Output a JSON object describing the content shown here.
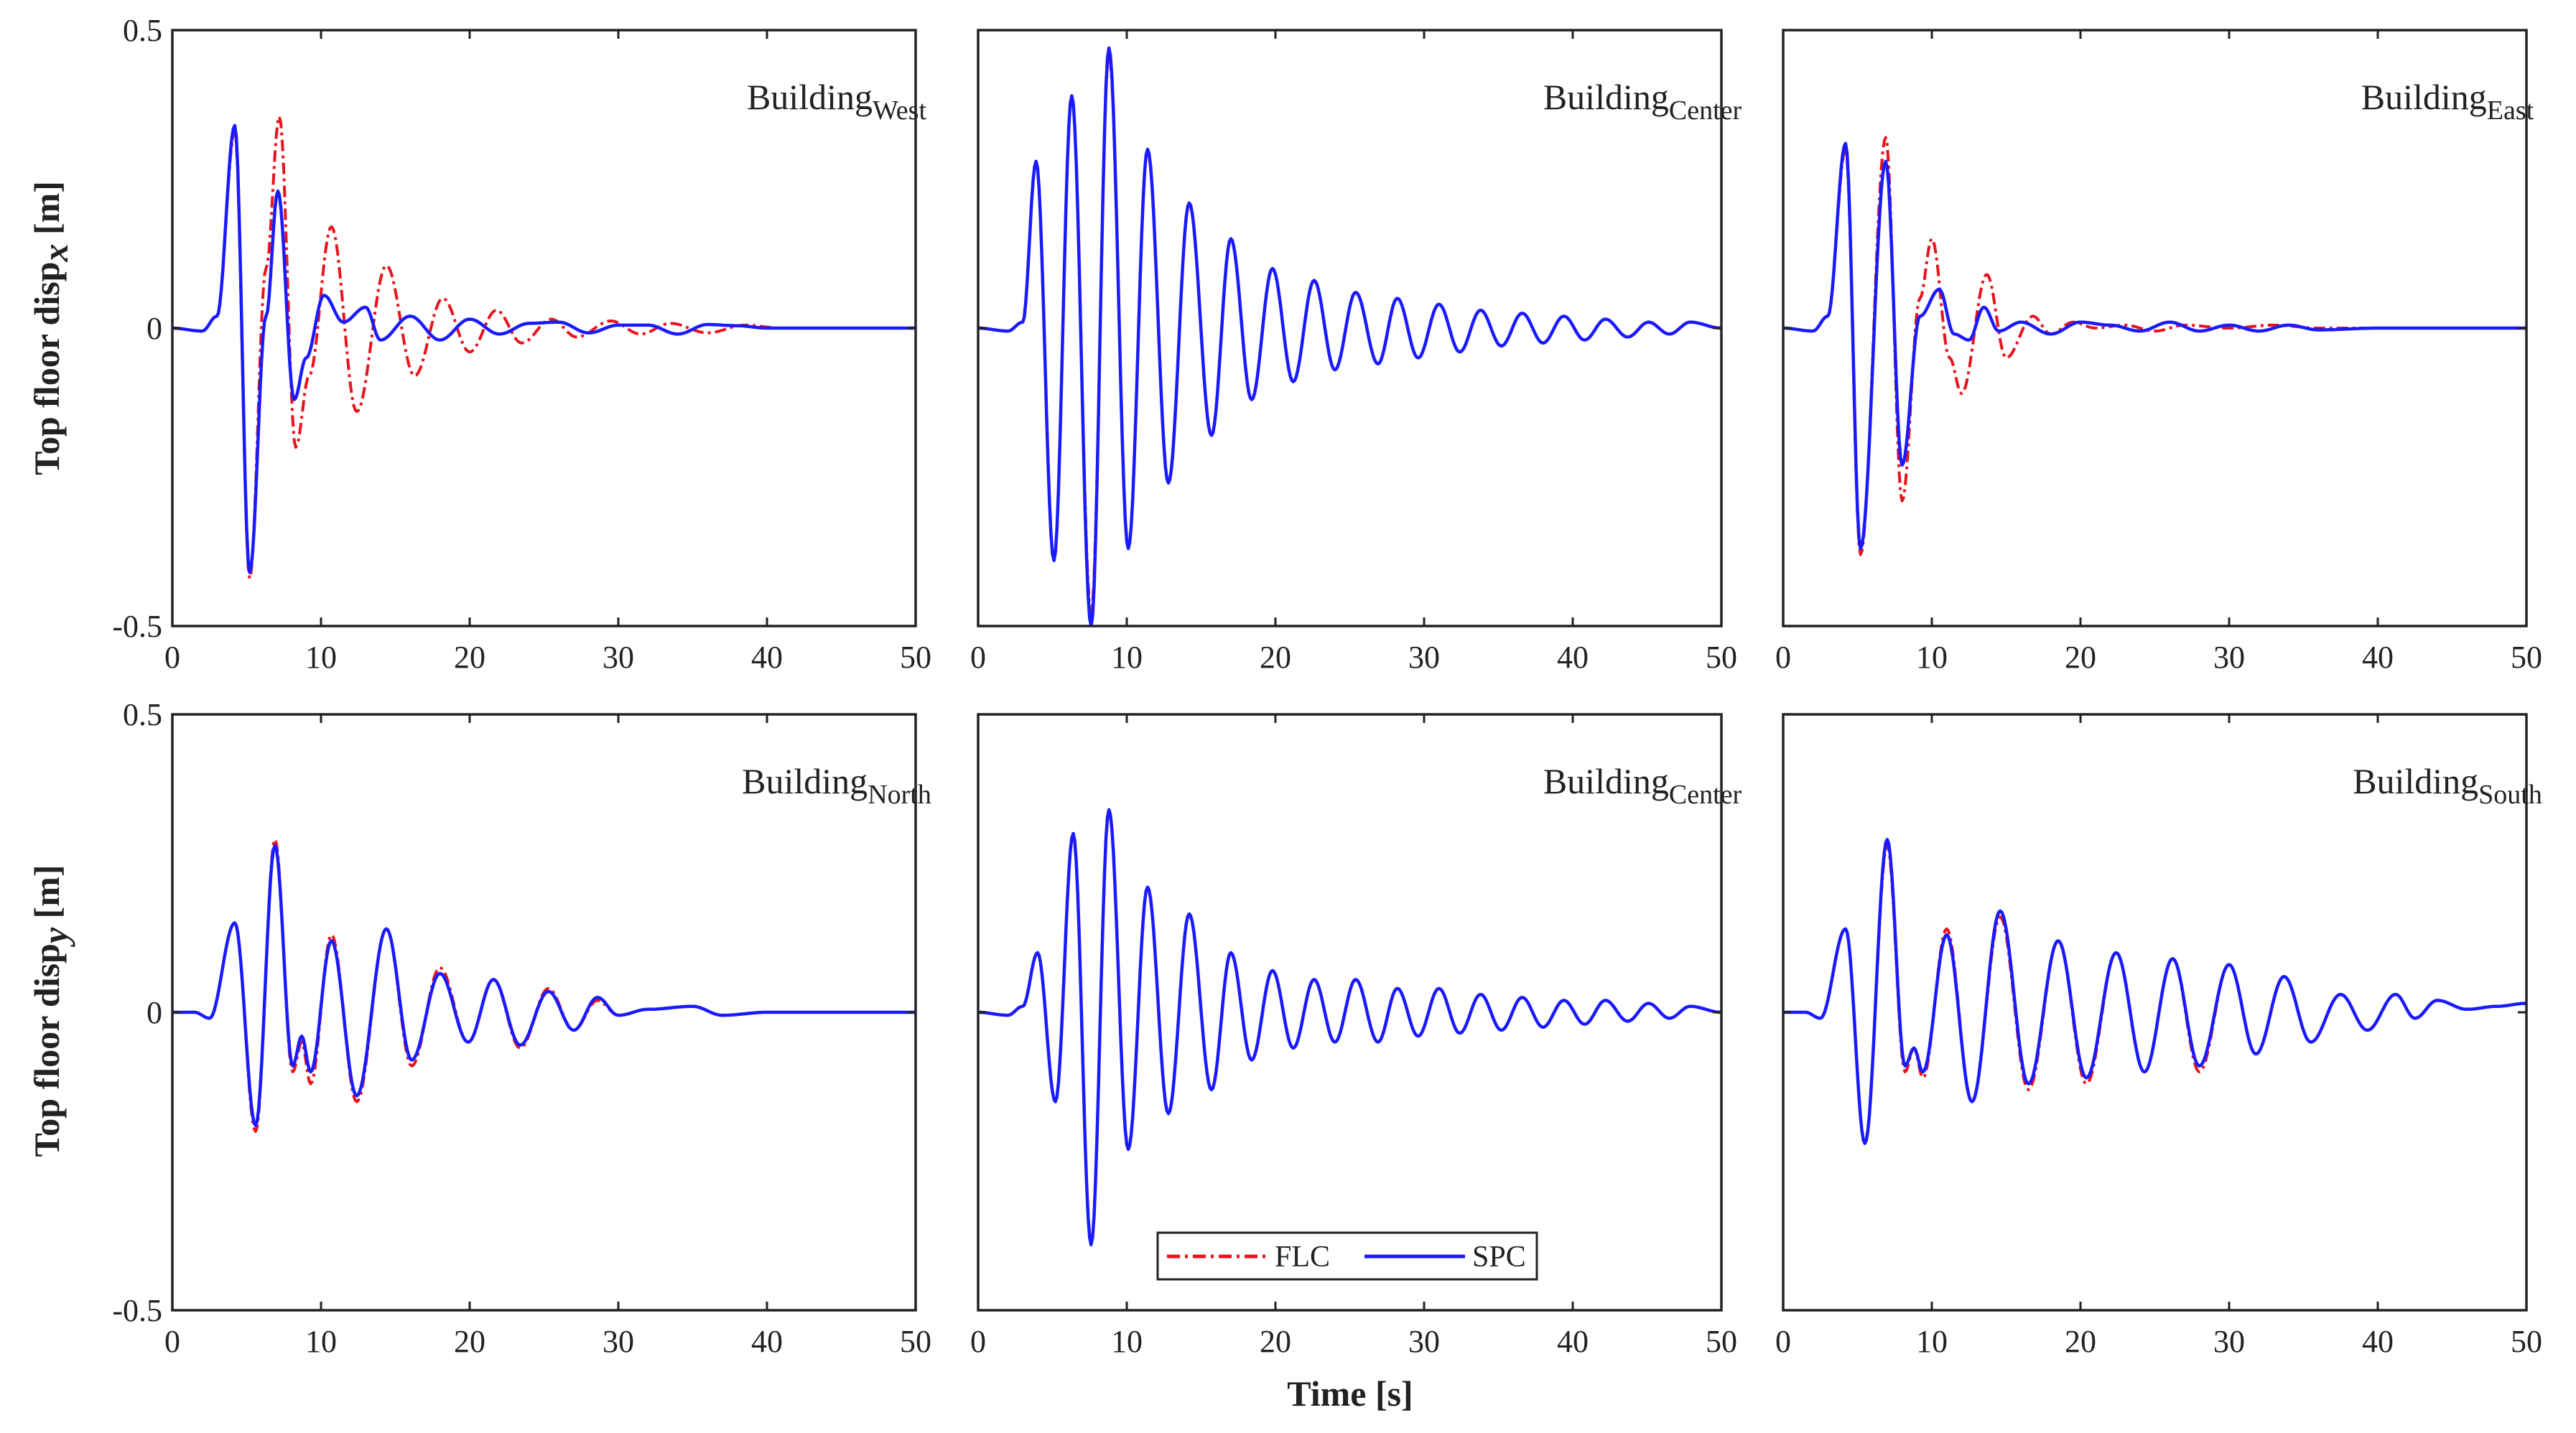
{
  "chart_data": {
    "type": "line",
    "shared": {
      "xlabel": "Time [s]",
      "xlim": [
        0,
        50
      ],
      "ylim": [
        -0.5,
        0.5
      ],
      "xticks": [
        "0",
        "10",
        "20",
        "30",
        "40",
        "50"
      ],
      "yticks": [
        "-0.5",
        "0",
        "0.5"
      ],
      "legend": {
        "location": "bottom-center",
        "entries": [
          {
            "name": "FLC",
            "color": "#e8141c",
            "style": "dash-dot"
          },
          {
            "name": "SPC",
            "color": "#1a1aff",
            "style": "solid"
          }
        ]
      }
    },
    "rows": [
      {
        "ylabel_main": "Top floor disp",
        "ylabel_sub": "x",
        "ylabel_unit": " [m]"
      },
      {
        "ylabel_main": "Top floor disp",
        "ylabel_sub": "y",
        "ylabel_unit": " [m]"
      }
    ],
    "panels": [
      {
        "title": "Building",
        "subscript": "West",
        "series": [
          {
            "name": "FLC",
            "t": [
              0,
              2,
              3,
              4.2,
              5.2,
              6.3,
              7.2,
              8.3,
              9.2,
              10.7,
              12.4,
              14.4,
              16.3,
              18.2,
              20,
              21.8,
              23.5,
              25.5,
              27.2,
              29.5,
              31.5,
              33.5,
              36,
              38.5,
              41,
              45,
              50
            ],
            "v": [
              0,
              -0.005,
              0.02,
              0.33,
              -0.42,
              0.1,
              0.355,
              -0.2,
              -0.08,
              0.17,
              -0.14,
              0.105,
              -0.08,
              0.05,
              -0.04,
              0.03,
              -0.025,
              0.015,
              -0.015,
              0.012,
              -0.01,
              0.008,
              -0.008,
              0.005,
              0,
              0,
              0
            ]
          },
          {
            "name": "SPC",
            "t": [
              0,
              2,
              3,
              4.2,
              5.2,
              6.3,
              7.1,
              8.2,
              9,
              10.2,
              11.5,
              13,
              14,
              16,
              18,
              20,
              22,
              24,
              26,
              28,
              30,
              32,
              34,
              36,
              38,
              40,
              45,
              50
            ],
            "v": [
              0,
              -0.005,
              0.02,
              0.34,
              -0.41,
              0.02,
              0.23,
              -0.12,
              -0.05,
              0.055,
              0.01,
              0.035,
              -0.02,
              0.02,
              -0.02,
              0.015,
              -0.01,
              0.008,
              0.01,
              -0.008,
              0.005,
              0.005,
              -0.01,
              0.006,
              0.004,
              0,
              0,
              0
            ]
          }
        ]
      },
      {
        "title": "Building",
        "subscript": "Center",
        "series": [
          {
            "name": "FLC",
            "t": [
              0,
              2,
              3,
              3.9,
              5.1,
              6.3,
              7.6,
              8.8,
              10.1,
              11.4,
              12.8,
              14.2,
              15.7,
              17,
              18.4,
              19.8,
              21.2,
              22.6,
              24,
              25.4,
              26.9,
              28.2,
              29.6,
              31,
              32.4,
              33.8,
              35.2,
              36.6,
              38,
              39.4,
              40.8,
              42.2,
              43.7,
              45.1,
              46.5,
              47.9,
              50
            ],
            "v": [
              0,
              -0.005,
              0.01,
              0.28,
              -0.39,
              0.39,
              -0.48,
              0.46,
              -0.37,
              0.3,
              -0.26,
              0.21,
              -0.18,
              0.15,
              -0.12,
              0.1,
              -0.09,
              0.08,
              -0.07,
              0.06,
              -0.06,
              0.05,
              -0.05,
              0.04,
              -0.04,
              0.03,
              -0.03,
              0.025,
              -0.025,
              0.02,
              -0.02,
              0.015,
              -0.015,
              0.01,
              -0.01,
              0.01,
              0
            ]
          },
          {
            "name": "SPC",
            "t": [
              0,
              2,
              3,
              3.9,
              5.1,
              6.3,
              7.6,
              8.8,
              10.1,
              11.4,
              12.8,
              14.2,
              15.7,
              17,
              18.4,
              19.8,
              21.2,
              22.6,
              24,
              25.4,
              26.9,
              28.2,
              29.6,
              31,
              32.4,
              33.8,
              35.2,
              36.6,
              38,
              39.4,
              40.8,
              42.2,
              43.7,
              45.1,
              46.5,
              47.9,
              50
            ],
            "v": [
              0,
              -0.005,
              0.01,
              0.28,
              -0.39,
              0.39,
              -0.5,
              0.47,
              -0.37,
              0.3,
              -0.26,
              0.21,
              -0.18,
              0.15,
              -0.12,
              0.1,
              -0.09,
              0.08,
              -0.07,
              0.06,
              -0.06,
              0.05,
              -0.05,
              0.04,
              -0.04,
              0.03,
              -0.03,
              0.025,
              -0.025,
              0.02,
              -0.02,
              0.015,
              -0.015,
              0.01,
              -0.01,
              0.01,
              0
            ]
          }
        ]
      },
      {
        "title": "Building",
        "subscript": "East",
        "series": [
          {
            "name": "FLC",
            "t": [
              0,
              2,
              3,
              4.2,
              5.2,
              6.9,
              8,
              9.2,
              10,
              11.2,
              12,
              13.7,
              15,
              16.8,
              18,
              19.5,
              21,
              23,
              25,
              27,
              30,
              33,
              36,
              40,
              45,
              50
            ],
            "v": [
              0,
              -0.005,
              0.02,
              0.3,
              -0.38,
              0.32,
              -0.29,
              0.05,
              0.15,
              -0.05,
              -0.11,
              0.09,
              -0.05,
              0.02,
              -0.01,
              0.01,
              0,
              0.005,
              -0.005,
              0.005,
              0,
              0.005,
              0,
              0,
              0,
              0
            ]
          },
          {
            "name": "SPC",
            "t": [
              0,
              2,
              3,
              4.2,
              5.2,
              6.9,
              8,
              9.2,
              10.5,
              11.5,
              12.5,
              13.5,
              14.5,
              16,
              18,
              20,
              22,
              24,
              26,
              28,
              30,
              32,
              34,
              36,
              40,
              45,
              50
            ],
            "v": [
              0,
              -0.005,
              0.02,
              0.31,
              -0.37,
              0.28,
              -0.23,
              0.02,
              0.065,
              -0.01,
              -0.02,
              0.035,
              -0.005,
              0.01,
              -0.01,
              0.01,
              0.005,
              -0.005,
              0.01,
              -0.005,
              0.005,
              -0.005,
              0.005,
              -0.003,
              0,
              0,
              0
            ]
          }
        ]
      },
      {
        "title": "Building",
        "subscript": "North",
        "series": [
          {
            "name": "FLC",
            "t": [
              0,
              1.5,
              2.5,
              4.2,
              5.6,
              6.9,
              8.1,
              8.7,
              9.3,
              10.7,
              12.4,
              14.4,
              16.1,
              18,
              19.9,
              21.6,
              23.4,
              25.3,
              27,
              28.6,
              30,
              32,
              35,
              37,
              40,
              45,
              50
            ],
            "v": [
              0,
              0,
              -0.01,
              0.15,
              -0.2,
              0.29,
              -0.1,
              -0.05,
              -0.12,
              0.13,
              -0.15,
              0.14,
              -0.09,
              0.075,
              -0.05,
              0.055,
              -0.06,
              0.04,
              -0.03,
              0.02,
              -0.005,
              0.005,
              0.01,
              -0.005,
              0,
              0,
              0
            ]
          },
          {
            "name": "SPC",
            "t": [
              0,
              1.5,
              2.5,
              4.2,
              5.6,
              6.9,
              8.1,
              8.7,
              9.3,
              10.7,
              12.4,
              14.4,
              16.1,
              18,
              19.9,
              21.6,
              23.4,
              25.3,
              27,
              28.6,
              30,
              32,
              35,
              37,
              40,
              45,
              50
            ],
            "v": [
              0,
              0,
              -0.01,
              0.15,
              -0.19,
              0.28,
              -0.09,
              -0.04,
              -0.1,
              0.12,
              -0.14,
              0.14,
              -0.08,
              0.065,
              -0.05,
              0.055,
              -0.055,
              0.035,
              -0.03,
              0.025,
              -0.005,
              0.005,
              0.01,
              -0.005,
              0,
              0,
              0
            ]
          }
        ]
      },
      {
        "title": "Building",
        "subscript": "Center",
        "series": [
          {
            "name": "FLC",
            "t": [
              0,
              2,
              3,
              4,
              5.2,
              6.4,
              7.6,
              8.8,
              10.1,
              11.4,
              12.8,
              14.2,
              15.7,
              17,
              18.4,
              19.8,
              21.2,
              22.6,
              24,
              25.4,
              26.9,
              28.2,
              29.6,
              31,
              32.4,
              33.8,
              35.2,
              36.6,
              38,
              39.4,
              40.8,
              42.2,
              43.7,
              45.1,
              46.5,
              47.9,
              50
            ],
            "v": [
              0,
              -0.005,
              0.01,
              0.1,
              -0.15,
              0.3,
              -0.39,
              0.34,
              -0.23,
              0.21,
              -0.17,
              0.165,
              -0.13,
              0.1,
              -0.08,
              0.07,
              -0.06,
              0.055,
              -0.05,
              0.055,
              -0.05,
              0.04,
              -0.04,
              0.04,
              -0.035,
              0.03,
              -0.03,
              0.025,
              -0.025,
              0.02,
              -0.02,
              0.02,
              -0.015,
              0.015,
              -0.01,
              0.01,
              0
            ]
          },
          {
            "name": "SPC",
            "t": [
              0,
              2,
              3,
              4,
              5.2,
              6.4,
              7.6,
              8.8,
              10.1,
              11.4,
              12.8,
              14.2,
              15.7,
              17,
              18.4,
              19.8,
              21.2,
              22.6,
              24,
              25.4,
              26.9,
              28.2,
              29.6,
              31,
              32.4,
              33.8,
              35.2,
              36.6,
              38,
              39.4,
              40.8,
              42.2,
              43.7,
              45.1,
              46.5,
              47.9,
              50
            ],
            "v": [
              0,
              -0.005,
              0.01,
              0.1,
              -0.15,
              0.3,
              -0.39,
              0.34,
              -0.23,
              0.21,
              -0.17,
              0.165,
              -0.13,
              0.1,
              -0.08,
              0.07,
              -0.06,
              0.055,
              -0.05,
              0.055,
              -0.05,
              0.04,
              -0.04,
              0.04,
              -0.035,
              0.03,
              -0.03,
              0.025,
              -0.025,
              0.02,
              -0.02,
              0.02,
              -0.015,
              0.015,
              -0.01,
              0.01,
              0
            ]
          }
        ]
      },
      {
        "title": "Building",
        "subscript": "South",
        "series": [
          {
            "name": "FLC",
            "t": [
              0,
              1.5,
              2.5,
              4.2,
              5.5,
              7,
              8.2,
              8.8,
              9.4,
              11,
              12.7,
              14.6,
              16.5,
              18.5,
              20.4,
              22.4,
              24.3,
              26.2,
              28,
              30,
              31.8,
              33.7,
              35.5,
              37.5,
              39.3,
              41.2,
              42.5,
              44,
              46,
              48,
              50
            ],
            "v": [
              0,
              0,
              -0.01,
              0.14,
              -0.22,
              0.28,
              -0.1,
              -0.06,
              -0.11,
              0.14,
              -0.15,
              0.16,
              -0.13,
              0.12,
              -0.12,
              0.1,
              -0.1,
              0.09,
              -0.1,
              0.08,
              -0.07,
              0.06,
              -0.05,
              0.03,
              -0.03,
              0.03,
              -0.01,
              0.02,
              0.005,
              0.01,
              0.015
            ]
          },
          {
            "name": "SPC",
            "t": [
              0,
              1.5,
              2.5,
              4.2,
              5.5,
              7,
              8.2,
              8.8,
              9.4,
              11,
              12.7,
              14.6,
              16.5,
              18.5,
              20.4,
              22.4,
              24.3,
              26.2,
              28,
              30,
              31.8,
              33.7,
              35.5,
              37.5,
              39.3,
              41.2,
              42.5,
              44,
              46,
              48,
              50
            ],
            "v": [
              0,
              0,
              -0.01,
              0.14,
              -0.22,
              0.29,
              -0.09,
              -0.06,
              -0.1,
              0.13,
              -0.15,
              0.17,
              -0.12,
              0.12,
              -0.11,
              0.1,
              -0.1,
              0.09,
              -0.09,
              0.08,
              -0.07,
              0.06,
              -0.05,
              0.03,
              -0.03,
              0.03,
              -0.01,
              0.02,
              0.005,
              0.01,
              0.015
            ]
          }
        ]
      }
    ]
  }
}
